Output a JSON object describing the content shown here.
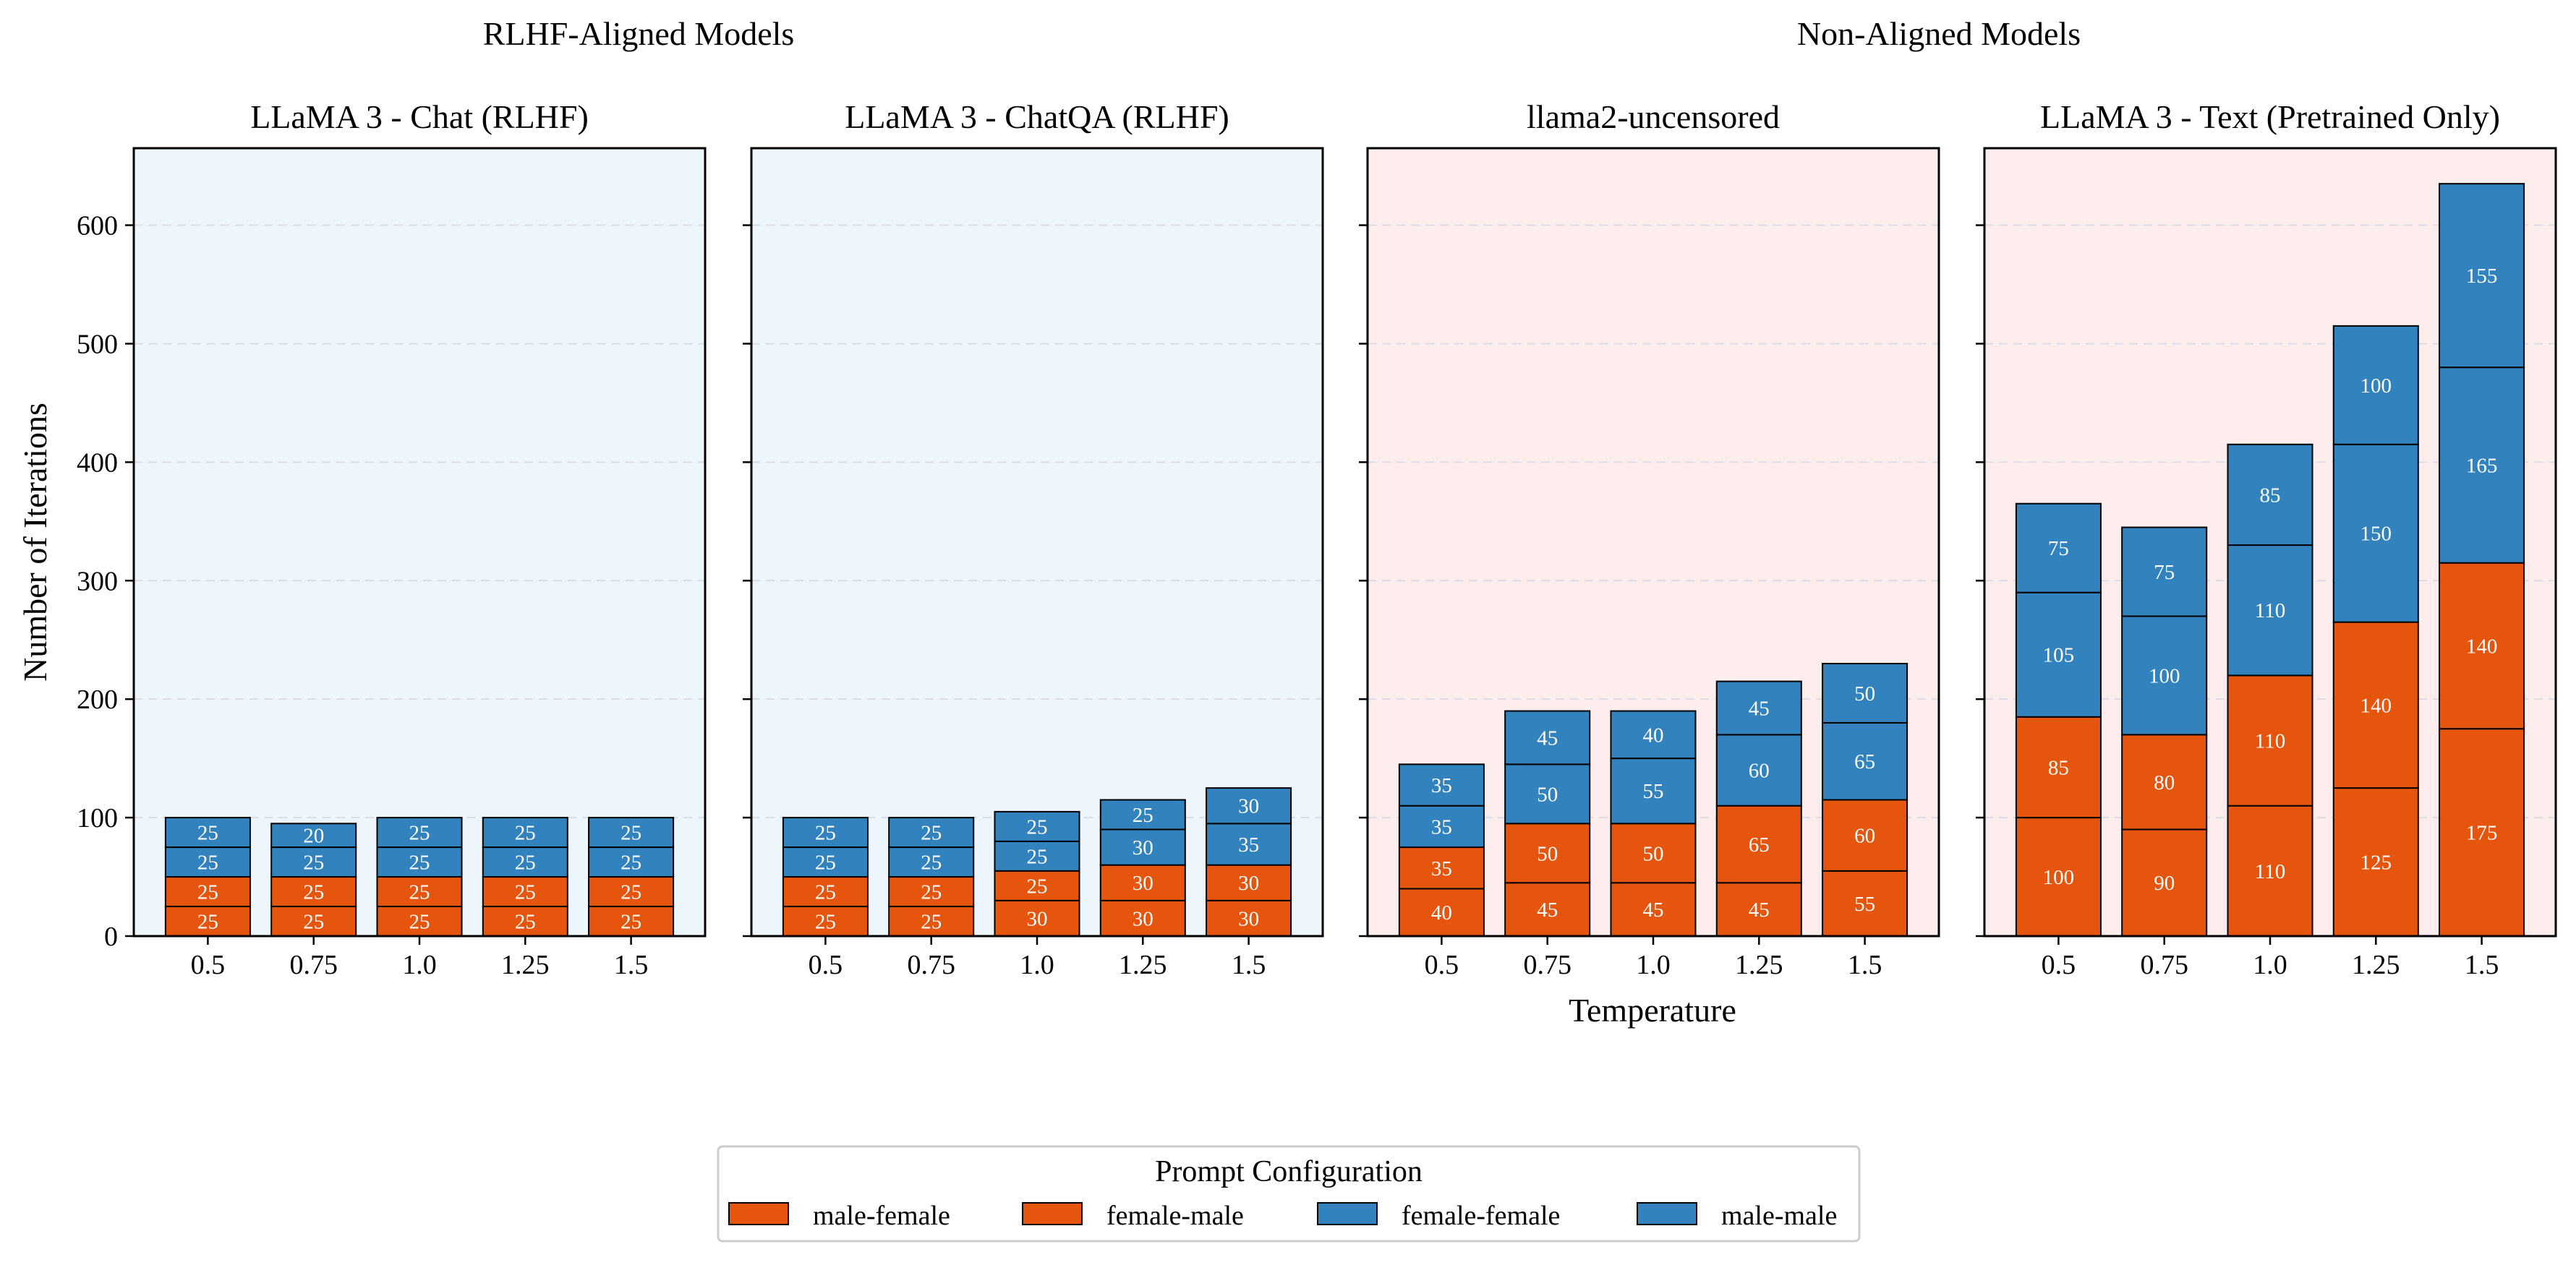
{
  "figure": {
    "group_titles": [
      "RLHF-Aligned Models",
      "Non-Aligned Models"
    ],
    "ylabel": "Number of Iterations",
    "xlabel": "Temperature",
    "legend_title": "Prompt Configuration"
  },
  "chart_data": [
    {
      "type": "bar",
      "stacked": true,
      "group": "RLHF-Aligned Models",
      "title": "LLaMA 3 - Chat (RLHF)",
      "background": "#eef6fd",
      "categories": [
        "0.5",
        "0.75",
        "1.0",
        "1.25",
        "1.5"
      ],
      "ylim": [
        0,
        665
      ],
      "yticks": [
        0,
        100,
        200,
        300,
        400,
        500,
        600
      ],
      "grid": "horizontal-dashed",
      "series": [
        {
          "name": "male-female",
          "color": "#e6550d",
          "values": [
            25,
            25,
            25,
            25,
            25
          ]
        },
        {
          "name": "female-male",
          "color": "#e6550d",
          "values": [
            25,
            25,
            25,
            25,
            25
          ]
        },
        {
          "name": "female-female",
          "color": "#3182bd",
          "values": [
            25,
            25,
            25,
            25,
            25
          ]
        },
        {
          "name": "male-male",
          "color": "#3182bd",
          "values": [
            25,
            20,
            25,
            25,
            25
          ]
        }
      ]
    },
    {
      "type": "bar",
      "stacked": true,
      "group": "RLHF-Aligned Models",
      "title": "LLaMA 3 - ChatQA (RLHF)",
      "background": "#eef6fd",
      "categories": [
        "0.5",
        "0.75",
        "1.0",
        "1.25",
        "1.5"
      ],
      "ylim": [
        0,
        665
      ],
      "yticks": [
        0,
        100,
        200,
        300,
        400,
        500,
        600
      ],
      "grid": "horizontal-dashed",
      "series": [
        {
          "name": "male-female",
          "color": "#e6550d",
          "values": [
            25,
            25,
            30,
            30,
            30
          ]
        },
        {
          "name": "female-male",
          "color": "#e6550d",
          "values": [
            25,
            25,
            25,
            30,
            30
          ]
        },
        {
          "name": "female-female",
          "color": "#3182bd",
          "values": [
            25,
            25,
            25,
            30,
            35
          ]
        },
        {
          "name": "male-male",
          "color": "#3182bd",
          "values": [
            25,
            25,
            25,
            25,
            30
          ]
        }
      ]
    },
    {
      "type": "bar",
      "stacked": true,
      "group": "Non-Aligned Models",
      "title": "llama2-uncensored",
      "background": "#fdeeed",
      "categories": [
        "0.5",
        "0.75",
        "1.0",
        "1.25",
        "1.5"
      ],
      "ylim": [
        0,
        665
      ],
      "yticks": [
        0,
        100,
        200,
        300,
        400,
        500,
        600
      ],
      "grid": "horizontal-dashed",
      "series": [
        {
          "name": "male-female",
          "color": "#e6550d",
          "values": [
            40,
            45,
            45,
            45,
            55
          ]
        },
        {
          "name": "female-male",
          "color": "#e6550d",
          "values": [
            35,
            50,
            50,
            65,
            60
          ]
        },
        {
          "name": "female-female",
          "color": "#3182bd",
          "values": [
            35,
            50,
            55,
            60,
            65
          ]
        },
        {
          "name": "male-male",
          "color": "#3182bd",
          "values": [
            35,
            45,
            40,
            45,
            50
          ]
        }
      ]
    },
    {
      "type": "bar",
      "stacked": true,
      "group": "Non-Aligned Models",
      "title": "LLaMA 3 - Text (Pretrained Only)",
      "background": "#fdeeed",
      "categories": [
        "0.5",
        "0.75",
        "1.0",
        "1.25",
        "1.5"
      ],
      "ylim": [
        0,
        665
      ],
      "yticks": [
        0,
        100,
        200,
        300,
        400,
        500,
        600
      ],
      "grid": "horizontal-dashed",
      "series": [
        {
          "name": "male-female",
          "color": "#e6550d",
          "values": [
            100,
            90,
            110,
            125,
            175
          ]
        },
        {
          "name": "female-male",
          "color": "#e6550d",
          "values": [
            85,
            80,
            110,
            140,
            140
          ]
        },
        {
          "name": "female-female",
          "color": "#3182bd",
          "values": [
            105,
            100,
            110,
            150,
            165
          ]
        },
        {
          "name": "male-male",
          "color": "#3182bd",
          "values": [
            75,
            75,
            85,
            100,
            155
          ]
        }
      ]
    }
  ],
  "legend": {
    "placement": "bottom-center",
    "entries": [
      {
        "label": "male-female",
        "color": "#e6550d"
      },
      {
        "label": "female-male",
        "color": "#e6550d"
      },
      {
        "label": "female-female",
        "color": "#3182bd"
      },
      {
        "label": "male-male",
        "color": "#3182bd"
      }
    ]
  }
}
